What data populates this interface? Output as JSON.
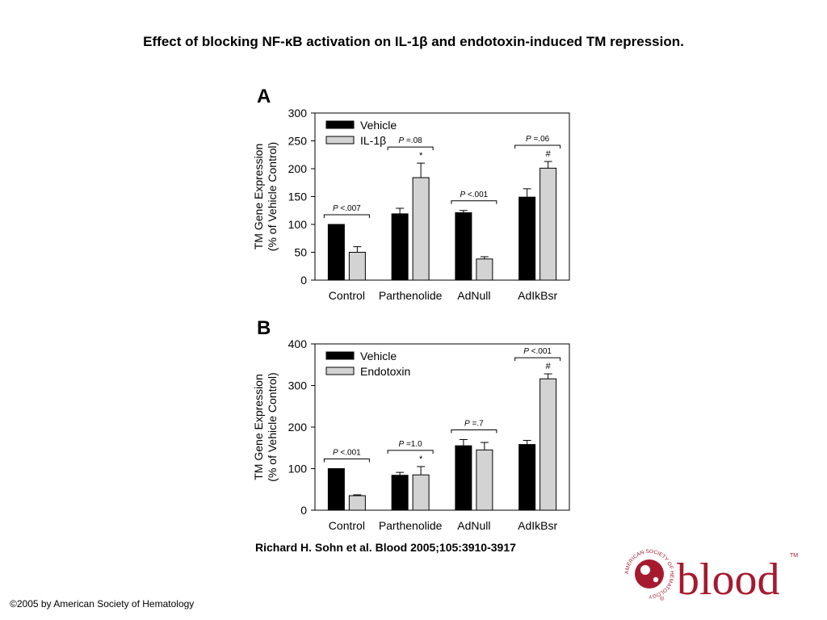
{
  "slide": {
    "title": "Effect of blocking NF-κB activation on IL-1β and endotoxin-induced TM repression.",
    "citation": "Richard H. Sohn et al. Blood 2005;105:3910-3917",
    "copyright": "©2005 by American Society of Hematology"
  },
  "logo": {
    "text": "blood",
    "ring_text": "AMERICAN SOCIETY OF HEMATOLOGY",
    "tm": "TM",
    "reg": "®",
    "color": "#a6192e"
  },
  "colors": {
    "vehicle": "#000000",
    "treatment": "#d3d3d3"
  },
  "chart_data": [
    {
      "type": "bar",
      "panel": "A",
      "categories": [
        "Control",
        "Parthenolide",
        "AdNull",
        "AdIkBsr"
      ],
      "ylabel": "TM Gene Expression (% of Vehicle Control)",
      "ylabel_lines": [
        "TM Gene Expression",
        "(% of Vehicle Control)"
      ],
      "ylim": [
        0,
        300
      ],
      "yticks": [
        0,
        50,
        100,
        150,
        200,
        250,
        300
      ],
      "legend_position": "top-left",
      "series": [
        {
          "name": "Vehicle",
          "values": [
            100,
            119,
            121,
            149
          ],
          "errors": [
            0,
            10,
            4,
            15
          ]
        },
        {
          "name": "IL-1β",
          "values": [
            50,
            184,
            38,
            201
          ],
          "errors": [
            10,
            26,
            4,
            12
          ]
        }
      ],
      "annotations": [
        {
          "category": 0,
          "p": "P",
          "value": "<.007",
          "mark": ""
        },
        {
          "category": 1,
          "p": "P",
          "value": "=.08",
          "mark": "*"
        },
        {
          "category": 2,
          "p": "P",
          "value": "<.001",
          "mark": ""
        },
        {
          "category": 3,
          "p": "P",
          "value": "=.06",
          "mark": "#"
        }
      ]
    },
    {
      "type": "bar",
      "panel": "B",
      "categories": [
        "Control",
        "Parthenolide",
        "AdNull",
        "AdIkBsr"
      ],
      "ylabel": "TM Gene Expression (% of Vehicle Control)",
      "ylabel_lines": [
        "TM Gene Expression",
        "(% of Vehicle Control)"
      ],
      "ylim": [
        0,
        400
      ],
      "yticks": [
        0,
        100,
        200,
        300,
        400
      ],
      "legend_position": "top-left",
      "series": [
        {
          "name": "Vehicle",
          "values": [
            100,
            84,
            155,
            158
          ],
          "errors": [
            0,
            7,
            15,
            10
          ]
        },
        {
          "name": "Endotoxin",
          "values": [
            35,
            85,
            145,
            316
          ],
          "errors": [
            2,
            20,
            18,
            12
          ]
        }
      ],
      "annotations": [
        {
          "category": 0,
          "p": "P",
          "value": "<.001",
          "mark": ""
        },
        {
          "category": 1,
          "p": "P",
          "value": "=1.0",
          "mark": "*"
        },
        {
          "category": 2,
          "p": "P",
          "value": "=.7",
          "mark": ""
        },
        {
          "category": 3,
          "p": "P",
          "value": "<.001",
          "mark": "#"
        }
      ]
    }
  ]
}
